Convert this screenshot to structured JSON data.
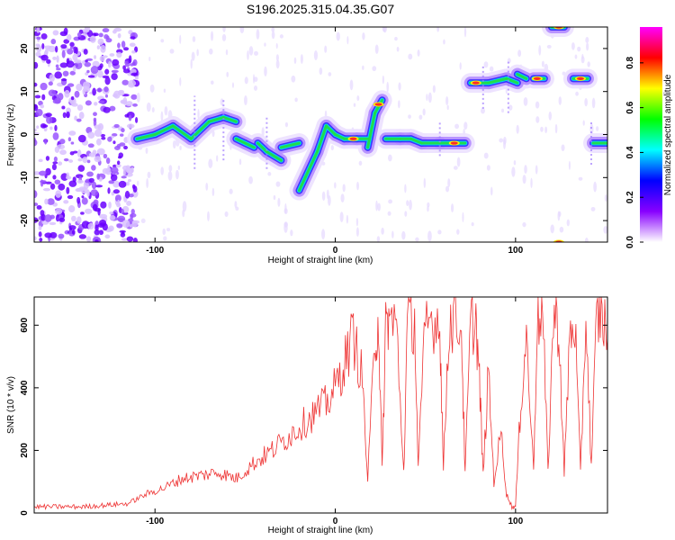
{
  "title": "S196.2025.315.04.35.G07",
  "chart_data": [
    {
      "type": "heatmap",
      "xlabel": "Height of straight line (km)",
      "ylabel": "Frequency (Hz)",
      "xlim": [
        -167,
        151
      ],
      "ylim": [
        -25,
        25
      ],
      "xticks": [
        -100,
        0,
        100
      ],
      "yticks": [
        -20,
        -10,
        0,
        10,
        20
      ],
      "colorbar": {
        "label": "Normalized spectral amplitude",
        "range": [
          0,
          0.96
        ],
        "ticks": [
          0.0,
          0.2,
          0.4,
          0.6,
          0.8
        ],
        "stops": [
          "#ffffff",
          "#8800ff",
          "#0000ff",
          "#00ffff",
          "#00ff00",
          "#ffff00",
          "#ff0000",
          "#ff00ff"
        ]
      },
      "noise_region_x": [
        -167,
        -110
      ],
      "ridge": [
        {
          "x": [
            -110,
            -100
          ],
          "y": [
            -1,
            0
          ]
        },
        {
          "x": [
            -100,
            -90
          ],
          "y": [
            0,
            2
          ]
        },
        {
          "x": [
            -90,
            -80
          ],
          "y": [
            2,
            -1
          ]
        },
        {
          "x": [
            -80,
            -70
          ],
          "y": [
            -1,
            3
          ]
        },
        {
          "x": [
            -70,
            -62
          ],
          "y": [
            3,
            4
          ]
        },
        {
          "x": [
            -62,
            -55
          ],
          "y": [
            4,
            3
          ]
        },
        {
          "x": [
            -55,
            -50
          ],
          "y": [
            -1,
            -2
          ]
        },
        {
          "x": [
            -50,
            -45
          ],
          "y": [
            -2,
            -3
          ]
        },
        {
          "x": [
            -43,
            -38
          ],
          "y": [
            -2,
            -4
          ]
        },
        {
          "x": [
            -38,
            -30
          ],
          "y": [
            -4,
            -6
          ]
        },
        {
          "x": [
            -30,
            -20
          ],
          "y": [
            -3,
            -2
          ]
        },
        {
          "x": [
            -20,
            -10
          ],
          "y": [
            -13,
            -4
          ]
        },
        {
          "x": [
            -10,
            -5
          ],
          "y": [
            -4,
            2
          ]
        },
        {
          "x": [
            -5,
            0
          ],
          "y": [
            2,
            0
          ]
        },
        {
          "x": [
            0,
            5
          ],
          "y": [
            0,
            -1
          ]
        },
        {
          "x": [
            5,
            12
          ],
          "y": [
            -1,
            -1
          ]
        },
        {
          "x": [
            12,
            18
          ],
          "y": [
            -1,
            -1
          ]
        },
        {
          "x": [
            18,
            22
          ],
          "y": [
            -3,
            5
          ]
        },
        {
          "x": [
            22,
            26
          ],
          "y": [
            5,
            8
          ]
        },
        {
          "x": [
            28,
            36
          ],
          "y": [
            -1,
            -1
          ]
        },
        {
          "x": [
            36,
            42
          ],
          "y": [
            -1,
            -1
          ]
        },
        {
          "x": [
            42,
            48
          ],
          "y": [
            -1,
            -2
          ]
        },
        {
          "x": [
            48,
            58
          ],
          "y": [
            -2,
            -2
          ]
        },
        {
          "x": [
            58,
            72
          ],
          "y": [
            -2,
            -2
          ]
        },
        {
          "x": [
            75,
            85
          ],
          "y": [
            12,
            12
          ]
        },
        {
          "x": [
            85,
            95
          ],
          "y": [
            12,
            13
          ]
        },
        {
          "x": [
            95,
            101
          ],
          "y": [
            13,
            12
          ]
        },
        {
          "x": [
            101,
            106
          ],
          "y": [
            14,
            13
          ]
        },
        {
          "x": [
            110,
            116
          ],
          "y": [
            13,
            13
          ]
        },
        {
          "x": [
            120,
            127
          ],
          "y": [
            25,
            25
          ]
        },
        {
          "x": [
            132,
            140
          ],
          "y": [
            13,
            13
          ]
        },
        {
          "x": [
            143,
            151
          ],
          "y": [
            -2,
            -2
          ]
        }
      ]
    },
    {
      "type": "line",
      "xlabel": "Height of straight line (km)",
      "ylabel": "SNR (10 * v/v)",
      "xlim": [
        -167,
        151
      ],
      "ylim": [
        0,
        690
      ],
      "xticks": [
        -100,
        0,
        100
      ],
      "yticks": [
        0,
        200,
        400,
        600
      ],
      "color": "#ee3333",
      "x": [
        -167,
        -140,
        -115,
        -105,
        -95,
        -85,
        -75,
        -65,
        -55,
        -45,
        -35,
        -25,
        -15,
        -5,
        0,
        5,
        10,
        15,
        18,
        22,
        24,
        26,
        28,
        30,
        34,
        38,
        40,
        44,
        46,
        50,
        54,
        58,
        60,
        63,
        66,
        70,
        72,
        75,
        78,
        80,
        82,
        85,
        88,
        92,
        95,
        98,
        100,
        103,
        106,
        110,
        112,
        115,
        118,
        121,
        124,
        127,
        130,
        133,
        136,
        139,
        142,
        145,
        148,
        151
      ],
      "y": [
        20,
        20,
        30,
        60,
        80,
        110,
        120,
        130,
        110,
        160,
        200,
        250,
        300,
        350,
        400,
        480,
        570,
        430,
        100,
        550,
        620,
        130,
        610,
        620,
        590,
        130,
        600,
        620,
        140,
        600,
        620,
        610,
        140,
        600,
        620,
        590,
        120,
        600,
        620,
        420,
        120,
        450,
        100,
        260,
        60,
        20,
        20,
        360,
        570,
        130,
        620,
        640,
        130,
        630,
        600,
        120,
        560,
        610,
        120,
        640,
        150,
        620,
        640,
        560
      ]
    }
  ]
}
